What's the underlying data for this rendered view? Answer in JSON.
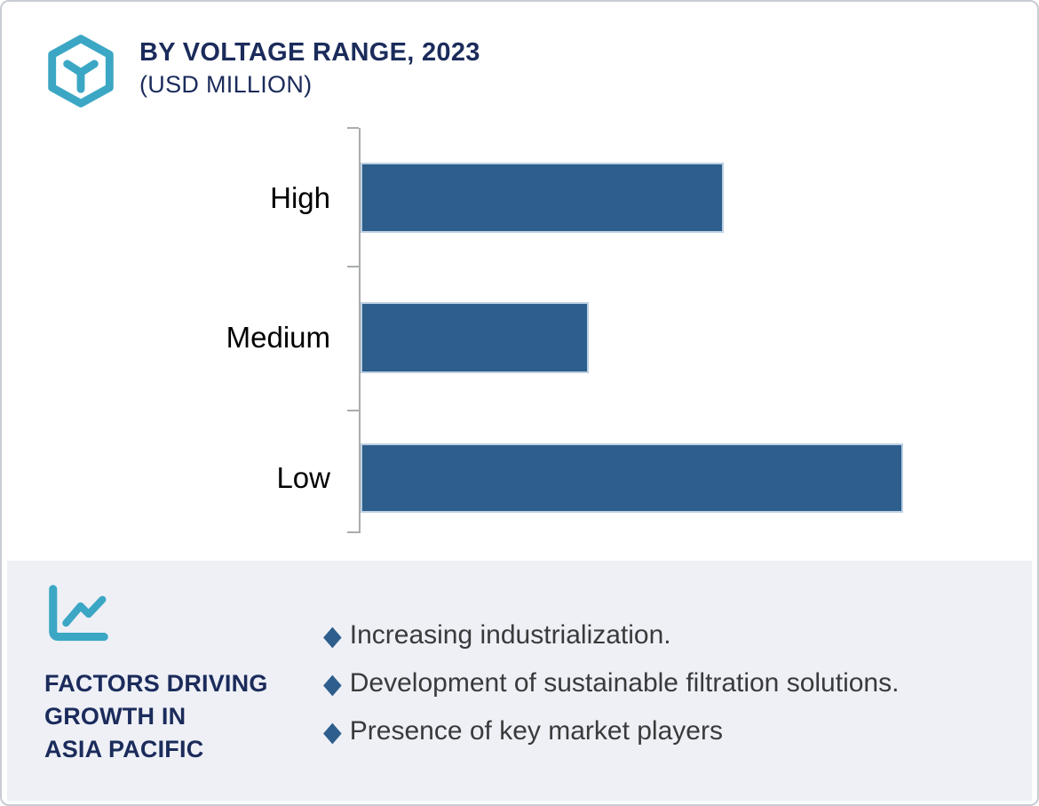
{
  "header": {
    "title_line1": "BY VOLTAGE RANGE, 2023",
    "title_line2": "(USD MILLION)",
    "logo_icon": "hexagon-y-logo"
  },
  "colors": {
    "bar": "#2d5e8c",
    "bar_edge": "#bcd0e2",
    "title_navy": "#1b2b5b",
    "teal_accent": "#3ba7c4",
    "panel_background": "#eef0f6",
    "axis_gray": "#aaacae",
    "bullet_text": "#3a3a3c",
    "frame_border": "#c9ccd3"
  },
  "chart_data": {
    "type": "bar",
    "orientation": "horizontal",
    "title": "BY VOLTAGE RANGE, 2023 (USD MILLION)",
    "categories": [
      "High",
      "Medium",
      "Low"
    ],
    "values": [
      0.67,
      0.42,
      1.0
    ],
    "values_note": "No numeric axis labels shown; values are bar lengths relative to the longest bar (Low = 1.0).",
    "xlabel": "",
    "ylabel": "",
    "value_labels_shown": false,
    "gridlines": false,
    "legend": "none",
    "bar_color": "#2d5e8c"
  },
  "factors_panel": {
    "icon": "line-chart-icon",
    "heading_line1": "FACTORS DRIVING",
    "heading_line2": "GROWTH IN",
    "heading_line3": "ASIA PACIFIC",
    "bullet_marker": "◆",
    "bullets": [
      "Increasing industrialization.",
      "Development of sustainable filtration solutions.",
      "Presence of key market players"
    ]
  }
}
